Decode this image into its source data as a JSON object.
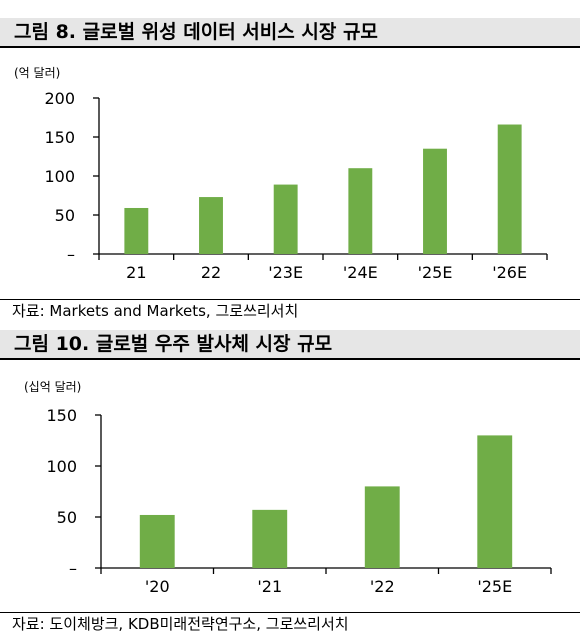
{
  "figure1": {
    "title": "그림 8. 글로벌 위성 데이터 서비스 시장 규모",
    "unit": "(억 달러)",
    "source": "자료: Markets and Markets, 그로쓰리서치"
  },
  "figure2": {
    "title": "그림 10. 글로벌 우주 발사체 시장 규모",
    "unit": "(십억 달러)",
    "source": "자료: 도이체방크, KDB미래전략연구소, 그로쓰리서치"
  },
  "colors": {
    "bar": "#70ad47",
    "axis": "#000000"
  },
  "chart_data": [
    {
      "type": "bar",
      "categories": [
        "21",
        "22",
        "'23E",
        "'24E",
        "'25E",
        "'26E"
      ],
      "values": [
        59,
        73,
        89,
        110,
        135,
        166
      ],
      "ylim": [
        0,
        200
      ],
      "yticks": [
        "–",
        "50",
        "100",
        "150",
        "200"
      ],
      "title": "그림 8. 글로벌 위성 데이터 서비스 시장 규모",
      "ylabel": "(억 달러)",
      "grid": false
    },
    {
      "type": "bar",
      "categories": [
        "'20",
        "'21",
        "'22",
        "'25E"
      ],
      "values": [
        52,
        57,
        80,
        130
      ],
      "ylim": [
        0,
        150
      ],
      "yticks": [
        "–",
        "50",
        "100",
        "150"
      ],
      "title": "그림 10. 글로벌 우주 발사체 시장 규모",
      "ylabel": "(십억 달러)",
      "grid": false
    }
  ]
}
